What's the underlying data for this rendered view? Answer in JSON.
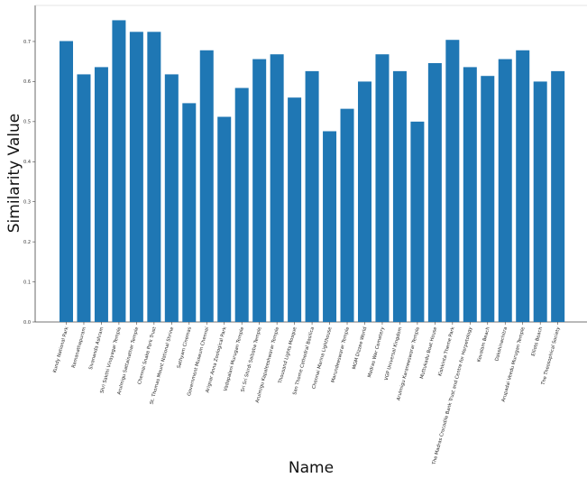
{
  "chart_data": {
    "type": "bar",
    "title": "",
    "xlabel": "Name",
    "ylabel": "Similarity Value",
    "ylim": [
      0,
      0.79
    ],
    "yticks": [
      "0.0",
      "0.1",
      "0.2",
      "0.3",
      "0.4",
      "0.5",
      "0.6",
      "0.7"
    ],
    "grid": false,
    "bar_color": "#1f77b4",
    "categories": [
      "Kundy National Park",
      "Ramanathapuram",
      "Sivananda Ashram",
      "Shri Sakthi Vinayagar Temple",
      "Arulmigu Sattainathar Temple",
      "Chennai Snake Park Trust",
      "St. Thomas Mount National Shrine",
      "Sathyam Cinemas",
      "Government Museum Chennai",
      "Arignar Anna Zoological Park",
      "Vadapalani Murugan Temple",
      "Sri Sri Shirdi Saibaba Temple",
      "Arulmigu Kapaleeshwarar Temple",
      "Thousand Lights Mosque",
      "San Thome Cathedral Basilica",
      "Chennai Marina Lighthouse",
      "Marundeeswarar Temple",
      "MGM Dizzee World",
      "Madras War Cemetery",
      "VGP Universal Kingdom",
      "Arulmigu Karaneeswarar Temple",
      "Muttukadu Boat House",
      "Kishkinta Theme Park",
      "The Madras Crocodile Bank Trust and Centre for Herpetology",
      "Kovalam Beach",
      "Dakshinachitra",
      "Arupadai Veedu Murugan Temple",
      "Elliots Beach",
      "The Theosophical Society"
    ],
    "values": [
      0.701,
      0.618,
      0.636,
      0.753,
      0.724,
      0.724,
      0.618,
      0.546,
      0.678,
      0.512,
      0.584,
      0.656,
      0.668,
      0.56,
      0.626,
      0.476,
      0.532,
      0.6,
      0.668,
      0.626,
      0.5,
      0.646,
      0.704,
      0.636,
      0.614,
      0.656,
      0.678,
      0.6,
      0.626
    ]
  }
}
